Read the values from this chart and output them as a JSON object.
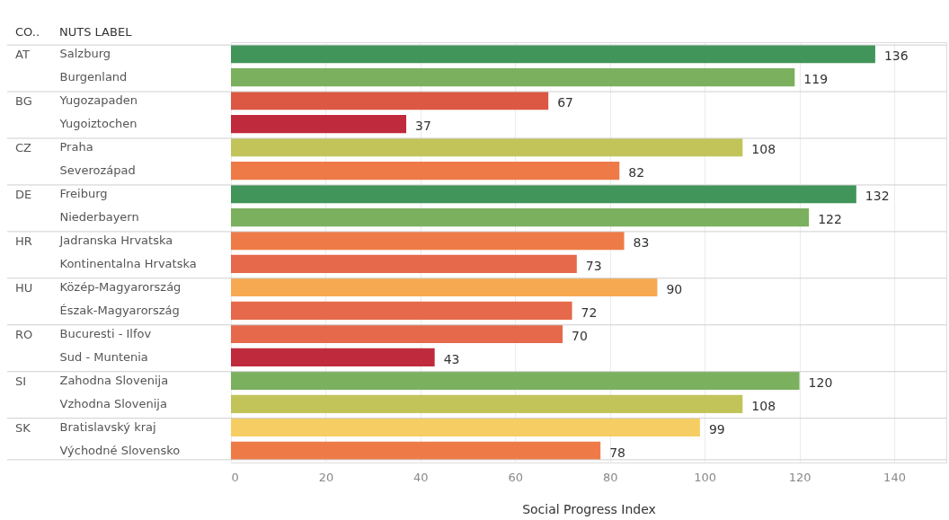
{
  "chart_data": {
    "type": "bar",
    "orientation": "horizontal",
    "xlabel": "Social Progress Index",
    "categories": [
      "Salzburg",
      "Burgenland",
      "Yugozapaden",
      "Yugoiztochen",
      "Praha",
      "Severozápad",
      "Freiburg",
      "Niederbayern",
      "Jadranska Hrvatska",
      "Kontinentalna Hrvatska",
      "Közép-Magyarország",
      "Észak-Magyarország",
      "Bucuresti - Ilfov",
      "Sud - Muntenia",
      "Zahodna Slovenija",
      "Vzhodna Slovenija",
      "Bratislavský kraj",
      "Východné Slovensko"
    ],
    "values": [
      136,
      119,
      67,
      37,
      108,
      82,
      132,
      122,
      83,
      73,
      90,
      72,
      70,
      43,
      120,
      108,
      99,
      78
    ],
    "colors": [
      "#42955a",
      "#7bb05f",
      "#dc5843",
      "#bf2a3c",
      "#c2c45a",
      "#ee7b47",
      "#42955a",
      "#7bb05f",
      "#ee7b47",
      "#e5694a",
      "#f7a951",
      "#e5694a",
      "#e5694a",
      "#bf2a3c",
      "#7bb05f",
      "#c2c45a",
      "#f5cd62",
      "#ee7b47"
    ],
    "xlim": [
      0,
      151
    ],
    "xticks": [
      0,
      20,
      40,
      60,
      80,
      100,
      120,
      140
    ],
    "grid": "x",
    "data_labels": true,
    "annotations": [
      "CO..",
      "NUTS LABEL",
      "AT",
      "BG",
      "CZ",
      "DE",
      "HR",
      "HU",
      "RO",
      "SI",
      "SK"
    ]
  }
}
